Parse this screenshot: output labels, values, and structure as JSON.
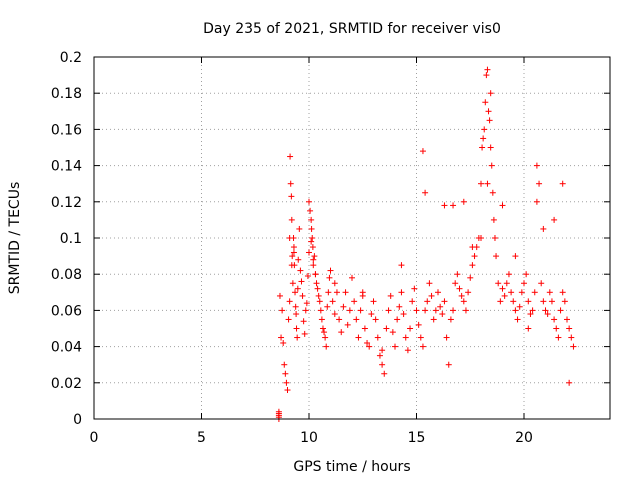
{
  "chart_data": {
    "type": "scatter",
    "title": "Day 235 of 2021, SRMTID for receiver vis0",
    "xlabel": "GPS time / hours",
    "ylabel": "SRMTID / TECUs",
    "xlim": [
      0,
      24
    ],
    "ylim": [
      0,
      0.2
    ],
    "xticks": [
      0,
      5,
      10,
      15,
      20
    ],
    "yticks": [
      0,
      0.02,
      0.04,
      0.06,
      0.08,
      0.1,
      0.12,
      0.14,
      0.16,
      0.18,
      0.2
    ],
    "grid": true,
    "marker": "plus",
    "color": "#ff0000",
    "series": [
      {
        "x": [
          8.6,
          8.6,
          8.6,
          8.6,
          8.6,
          8.65,
          8.7,
          8.75,
          8.8,
          8.85,
          8.9,
          8.95,
          9.0,
          9.05,
          9.1,
          9.12,
          9.15,
          9.18,
          9.2,
          9.22,
          9.25,
          9.28,
          9.3,
          9.32,
          9.35,
          9.38,
          9.4,
          9.42,
          9.45,
          9.48,
          9.5,
          9.55,
          9.6,
          9.65,
          9.7,
          9.75,
          9.8,
          9.85,
          9.9,
          9.95,
          10.0,
          10.05,
          10.1,
          10.12,
          10.15,
          10.18,
          10.2,
          10.25,
          10.3,
          10.35,
          10.4,
          10.45,
          10.5,
          10.55,
          10.6,
          10.65,
          10.7,
          10.75,
          10.8,
          10.85,
          10.9,
          10.95,
          11.0,
          11.1,
          11.2,
          11.3,
          11.4,
          11.5,
          11.6,
          11.7,
          11.8,
          11.9,
          12.0,
          12.1,
          12.2,
          12.3,
          12.4,
          12.5,
          12.6,
          12.7,
          12.8,
          12.9,
          13.0,
          13.1,
          13.2,
          13.3,
          13.4,
          13.5,
          13.6,
          13.7,
          13.8,
          13.9,
          14.0,
          14.1,
          14.2,
          14.3,
          14.4,
          14.5,
          14.6,
          14.7,
          14.8,
          14.9,
          15.0,
          15.1,
          15.2,
          15.3,
          15.4,
          15.5,
          15.6,
          15.7,
          15.8,
          15.9,
          16.0,
          16.1,
          16.2,
          16.3,
          16.4,
          16.5,
          16.6,
          16.7,
          16.8,
          16.9,
          17.0,
          17.1,
          17.2,
          17.3,
          17.4,
          17.5,
          17.6,
          17.7,
          17.8,
          17.9,
          18.0,
          18.05,
          18.1,
          18.15,
          18.2,
          18.25,
          18.3,
          18.35,
          18.4,
          18.45,
          18.5,
          18.55,
          18.6,
          18.65,
          18.7,
          18.8,
          18.9,
          19.0,
          19.1,
          19.2,
          19.3,
          19.4,
          19.5,
          19.6,
          19.7,
          19.8,
          19.9,
          20.0,
          20.1,
          20.2,
          20.3,
          20.4,
          20.5,
          20.6,
          20.7,
          20.8,
          20.9,
          21.0,
          21.1,
          21.2,
          21.3,
          21.4,
          21.5,
          21.6,
          21.7,
          21.8,
          21.9,
          22.0,
          22.1,
          22.2,
          22.3,
          9.1,
          9.2,
          9.3,
          10.0,
          10.1,
          10.2,
          10.3,
          11.2,
          12.5,
          13.4,
          14.3,
          15.3,
          15.4,
          16.3,
          16.7,
          17.2,
          17.6,
          18.0,
          18.3,
          18.45,
          19.0,
          19.6,
          20.2,
          20.6,
          20.9,
          21.4,
          21.8,
          22.1
        ],
        "y": [
          0.0,
          0.001,
          0.002,
          0.003,
          0.004,
          0.068,
          0.045,
          0.06,
          0.042,
          0.03,
          0.025,
          0.02,
          0.016,
          0.055,
          0.065,
          0.145,
          0.13,
          0.123,
          0.11,
          0.09,
          0.075,
          0.1,
          0.095,
          0.085,
          0.07,
          0.062,
          0.058,
          0.05,
          0.045,
          0.072,
          0.088,
          0.105,
          0.082,
          0.076,
          0.068,
          0.054,
          0.047,
          0.06,
          0.064,
          0.079,
          0.12,
          0.115,
          0.11,
          0.105,
          0.1,
          0.095,
          0.085,
          0.09,
          0.08,
          0.075,
          0.072,
          0.068,
          0.065,
          0.06,
          0.055,
          0.05,
          0.048,
          0.045,
          0.04,
          0.062,
          0.07,
          0.078,
          0.082,
          0.065,
          0.058,
          0.07,
          0.055,
          0.048,
          0.062,
          0.07,
          0.052,
          0.06,
          0.078,
          0.065,
          0.055,
          0.045,
          0.06,
          0.068,
          0.05,
          0.042,
          0.04,
          0.058,
          0.065,
          0.055,
          0.045,
          0.035,
          0.03,
          0.025,
          0.05,
          0.06,
          0.068,
          0.048,
          0.04,
          0.055,
          0.062,
          0.07,
          0.058,
          0.045,
          0.038,
          0.05,
          0.065,
          0.072,
          0.06,
          0.052,
          0.045,
          0.04,
          0.06,
          0.065,
          0.075,
          0.068,
          0.055,
          0.06,
          0.07,
          0.062,
          0.058,
          0.065,
          0.045,
          0.03,
          0.055,
          0.06,
          0.075,
          0.08,
          0.072,
          0.068,
          0.065,
          0.06,
          0.07,
          0.078,
          0.085,
          0.09,
          0.095,
          0.1,
          0.13,
          0.15,
          0.155,
          0.16,
          0.175,
          0.19,
          0.193,
          0.17,
          0.165,
          0.15,
          0.14,
          0.125,
          0.11,
          0.1,
          0.09,
          0.075,
          0.065,
          0.072,
          0.068,
          0.075,
          0.08,
          0.07,
          0.065,
          0.06,
          0.055,
          0.062,
          0.07,
          0.075,
          0.08,
          0.065,
          0.058,
          0.06,
          0.07,
          0.14,
          0.13,
          0.075,
          0.065,
          0.06,
          0.058,
          0.07,
          0.065,
          0.055,
          0.05,
          0.045,
          0.06,
          0.07,
          0.065,
          0.055,
          0.05,
          0.045,
          0.04,
          0.1,
          0.085,
          0.092,
          0.092,
          0.098,
          0.088,
          0.08,
          0.075,
          0.07,
          0.038,
          0.085,
          0.148,
          0.125,
          0.118,
          0.118,
          0.12,
          0.095,
          0.1,
          0.13,
          0.18,
          0.118,
          0.09,
          0.05,
          0.12,
          0.105,
          0.11,
          0.13,
          0.02
        ]
      }
    ]
  }
}
